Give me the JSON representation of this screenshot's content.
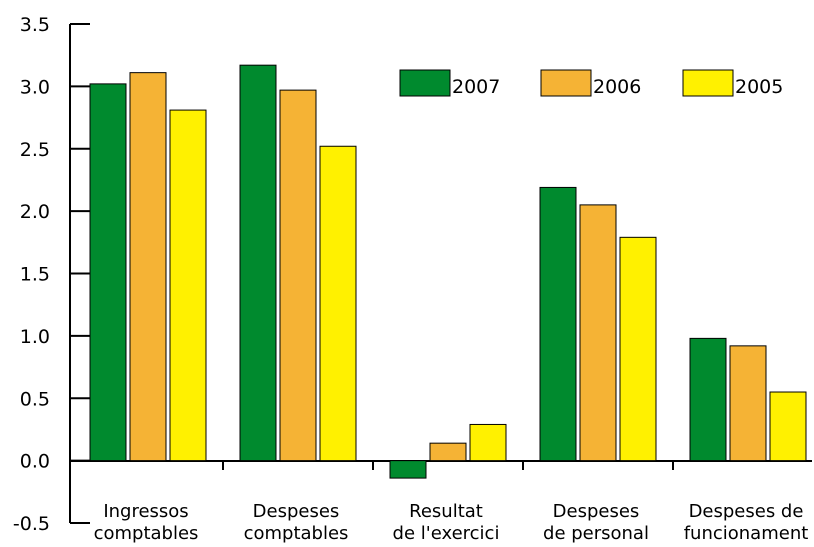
{
  "chart_data": {
    "type": "bar",
    "categories": [
      [
        "Ingressos",
        "comptables"
      ],
      [
        "Despeses",
        "comptables"
      ],
      [
        "Resultat",
        "de l'exercici"
      ],
      [
        "Despeses",
        "de personal"
      ],
      [
        "Despeses de",
        "funcionament"
      ]
    ],
    "series": [
      {
        "name": "2007",
        "color": "#008a2e",
        "values": [
          3.02,
          3.17,
          -0.14,
          2.19,
          0.98
        ]
      },
      {
        "name": "2006",
        "color": "#f5b335",
        "values": [
          3.11,
          2.97,
          0.14,
          2.05,
          0.92
        ]
      },
      {
        "name": "2005",
        "color": "#fff100",
        "values": [
          2.81,
          2.52,
          0.29,
          1.79,
          0.55
        ]
      }
    ],
    "ylim": [
      -0.5,
      3.5
    ],
    "yticks": [
      "-0.5",
      "0.0",
      "0.5",
      "1.0",
      "1.5",
      "2.0",
      "2.5",
      "3.0",
      "3.5"
    ],
    "grid": false,
    "legend_position": "top-right"
  }
}
